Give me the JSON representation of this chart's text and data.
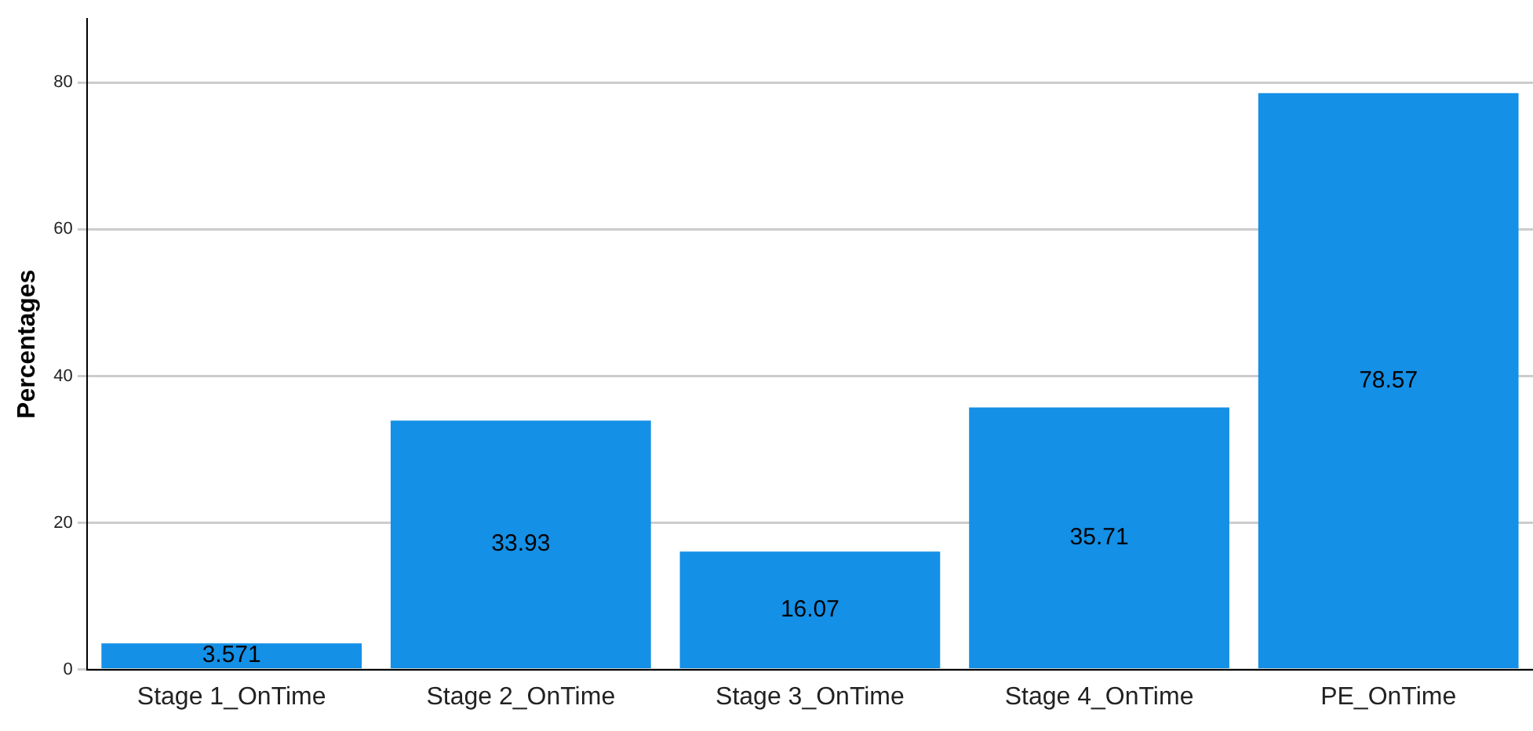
{
  "chart_data": {
    "type": "bar",
    "ylabel": "Percentages",
    "categories": [
      "Stage 1_OnTime",
      "Stage 2_OnTime",
      "Stage 3_OnTime",
      "Stage 4_OnTime",
      "PE_OnTime"
    ],
    "values": [
      3.571,
      33.93,
      16.07,
      35.71,
      78.57
    ],
    "color": "#1490e6",
    "ylim": [
      0,
      88.7
    ],
    "yticks": [
      0,
      20,
      40,
      60,
      80
    ],
    "grid": "y",
    "legend": false,
    "data_labels": true
  }
}
